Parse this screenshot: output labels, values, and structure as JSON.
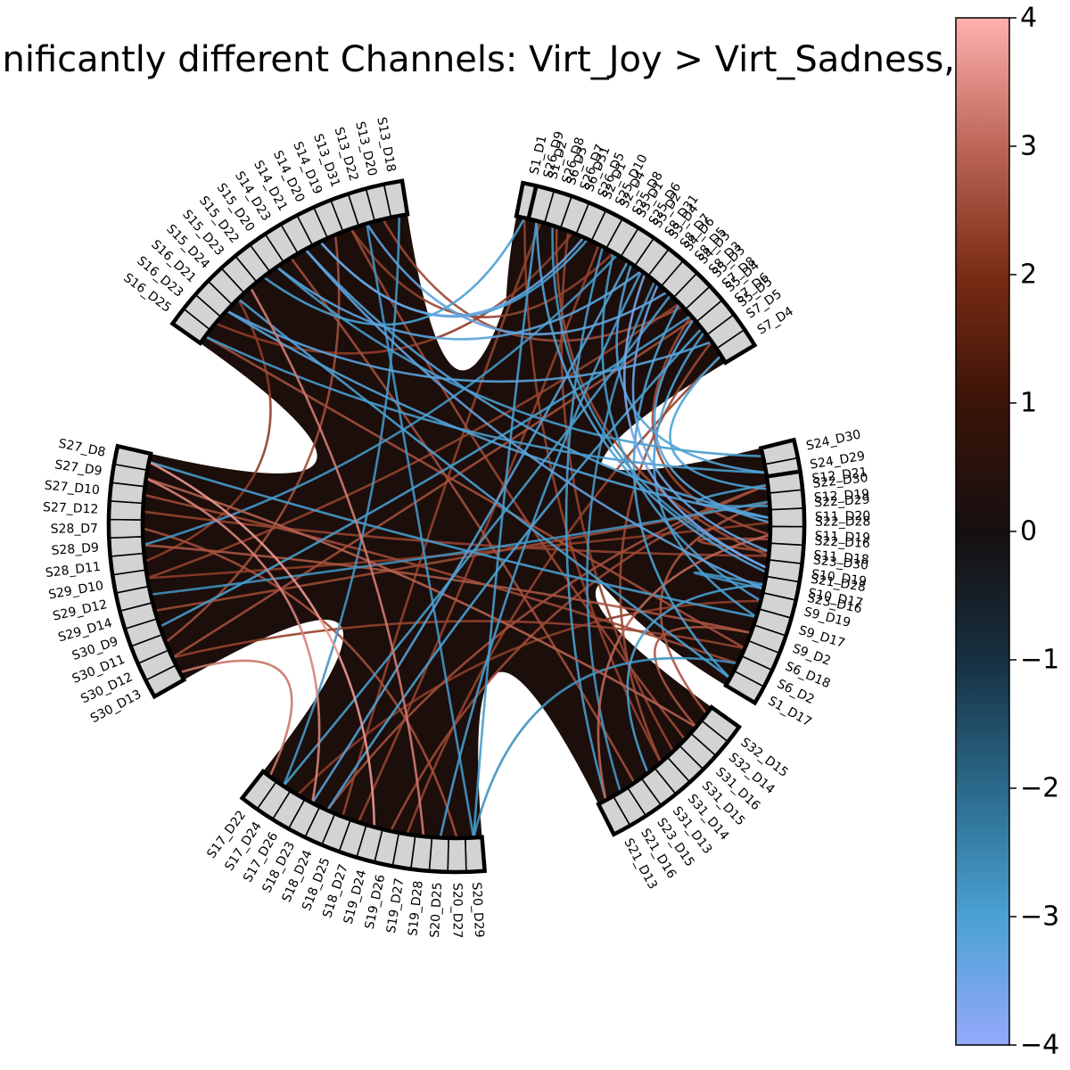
{
  "chart_data": {
    "type": "chord",
    "title": "Significantly different Channels: Virt_Joy > Virt_Sadness, t",
    "groups": [
      {
        "name": "group-1",
        "labels": [
          "S1_D1",
          "S1_D2",
          "S6_D3",
          "S6_D31",
          "S2_D1",
          "S2_D4",
          "S3_D1",
          "S3_D2",
          "S3_D4",
          "S4_D6",
          "S4_D3",
          "S5_D3",
          "S5_D4",
          "S5_D5"
        ]
      },
      {
        "name": "group-2",
        "labels": [
          "S24_D30",
          "S24_D29",
          "S22_D30",
          "S22_D29",
          "S22_D28",
          "S22_D16",
          "S23_D30",
          "S21_D28",
          "S23_D16"
        ]
      },
      {
        "name": "group-3",
        "labels": [
          "S32_D15",
          "S32_D14",
          "S31_D16",
          "S31_D15",
          "S31_D14",
          "S31_D13",
          "S23_D15",
          "S21_D16",
          "S21_D13"
        ]
      },
      {
        "name": "group-4",
        "labels": [
          "S20_D29",
          "S20_D27",
          "S20_D25",
          "S19_D28",
          "S19_D27",
          "S19_D26",
          "S19_D24",
          "S18_D27",
          "S18_D25",
          "S18_D24",
          "S18_D23",
          "S17_D26",
          "S17_D24",
          "S17_D22"
        ]
      },
      {
        "name": "group-5",
        "labels": [
          "S30_D13",
          "S30_D12",
          "S30_D11",
          "S30_D9",
          "S29_D14",
          "S29_D12",
          "S29_D10",
          "S28_D11",
          "S28_D9",
          "S28_D7",
          "S27_D12",
          "S27_D10",
          "S27_D9",
          "S27_D8"
        ]
      },
      {
        "name": "group-6",
        "labels": [
          "S16_D25",
          "S16_D23",
          "S16_D21",
          "S15_D24",
          "S15_D23",
          "S15_D22",
          "S15_D20",
          "S14_D23",
          "S14_D21",
          "S14_D20",
          "S14_D19",
          "S13_D31",
          "S13_D22",
          "S13_D20",
          "S13_D18"
        ]
      },
      {
        "name": "group-7",
        "labels": [
          "S26_D9",
          "S26_D8",
          "S26_D7",
          "S26_D5",
          "S25_D10",
          "S25_D8",
          "S25_D6",
          "S8_D31",
          "S8_D7",
          "S8_D5",
          "S8_D3",
          "S7_D8",
          "S7_D6",
          "S7_D5",
          "S7_D4"
        ]
      },
      {
        "name": "group-8",
        "labels": [
          "S12_D21",
          "S12_D19",
          "S11_D20",
          "S11_D19",
          "S11_D18",
          "S10_D19",
          "S10_D17",
          "S9_D19",
          "S9_D17",
          "S9_D2",
          "S6_D18",
          "S6_D2",
          "S1_D17"
        ]
      }
    ],
    "connections": [
      {
        "source": "S4_D6",
        "target": "S11_D18",
        "value": -3.4
      },
      {
        "source": "S3_D4",
        "target": "S10_D19",
        "value": -3.6
      },
      {
        "source": "S5_D4",
        "target": "S22_D28",
        "value": -3.2
      },
      {
        "source": "S3_D2",
        "target": "S24_D29",
        "value": -3.1
      },
      {
        "source": "S5_D5",
        "target": "S9_D17",
        "value": -3.0
      },
      {
        "source": "S2_D4",
        "target": "S21_D13",
        "value": -2.9
      },
      {
        "source": "S1_D1",
        "target": "S15_D22",
        "value": -3.0
      },
      {
        "source": "S1_D2",
        "target": "S18_D25",
        "value": 2.4
      },
      {
        "source": "S6_D3",
        "target": "S23_D30",
        "value": 2.5
      },
      {
        "source": "S6_D31",
        "target": "S16_D23",
        "value": 2.3
      },
      {
        "source": "S5_D4",
        "target": "S30_D12",
        "value": 2.6
      },
      {
        "source": "S5_D3",
        "target": "S13_D20",
        "value": 2.5
      },
      {
        "source": "S23_D16",
        "target": "S14_D21",
        "value": -3.3
      },
      {
        "source": "S24_D30",
        "target": "S15_D20",
        "value": -2.9
      },
      {
        "source": "S22_D30",
        "target": "S7_D4",
        "value": -3.0
      },
      {
        "source": "S22_D29",
        "target": "S12_D21",
        "value": -2.9
      },
      {
        "source": "S21_D28",
        "target": "S26_D9",
        "value": -3.1
      },
      {
        "source": "S22_D16",
        "target": "S11_D18",
        "value": 2.6
      },
      {
        "source": "S23_D30",
        "target": "S27_D12",
        "value": 2.4
      },
      {
        "source": "S32_D15",
        "target": "S12_D19",
        "value": 2.7
      },
      {
        "source": "S32_D14",
        "target": "S27_D9",
        "value": 2.9
      },
      {
        "source": "S31_D16",
        "target": "S13_D31",
        "value": 2.5
      },
      {
        "source": "S31_D13",
        "target": "S10_D17",
        "value": -3.0
      },
      {
        "source": "S21_D16",
        "target": "S8_D7",
        "value": -2.8
      },
      {
        "source": "S21_D13",
        "target": "S11_D19",
        "value": 3.0
      },
      {
        "source": "S23_D15",
        "target": "S14_D23",
        "value": 2.6
      },
      {
        "source": "S31_D15",
        "target": "S26_D7",
        "value": 2.4
      },
      {
        "source": "S19_D24",
        "target": "S27_D8",
        "value": 3.7
      },
      {
        "source": "S19_D28",
        "target": "S15_D23",
        "value": 3.3
      },
      {
        "source": "S20_D25",
        "target": "S8_D31",
        "value": -2.9
      },
      {
        "source": "S18_D24",
        "target": "S7_D6",
        "value": -3.0
      },
      {
        "source": "S18_D23",
        "target": "S25_D6",
        "value": -3.1
      },
      {
        "source": "S19_D26",
        "target": "S12_D21",
        "value": 2.5
      },
      {
        "source": "S17_D26",
        "target": "S9_D19",
        "value": 2.3
      },
      {
        "source": "S18_D27",
        "target": "S25_D10",
        "value": 2.4
      },
      {
        "source": "S20_D27",
        "target": "S28_D7",
        "value": 2.6
      },
      {
        "source": "S17_D24",
        "target": "S13_D18",
        "value": -2.8
      },
      {
        "source": "S17_D22",
        "target": "S30_D13",
        "value": 3.2
      },
      {
        "source": "S30_D11",
        "target": "S14_D19",
        "value": 2.6
      },
      {
        "source": "S29_D10",
        "target": "S8_D3",
        "value": 2.4
      },
      {
        "source": "S28_D9",
        "target": "S9_D2",
        "value": 2.7
      },
      {
        "source": "S27_D10",
        "target": "S6_D2",
        "value": 2.5
      },
      {
        "source": "S29_D12",
        "target": "S12_D19",
        "value": -2.7
      },
      {
        "source": "S30_D9",
        "target": "S7_D8",
        "value": -2.9
      },
      {
        "source": "S28_D11",
        "target": "S15_D24",
        "value": 2.3
      },
      {
        "source": "S16_D21",
        "target": "S7_D5",
        "value": -3.2
      },
      {
        "source": "S14_D20",
        "target": "S26_D5",
        "value": -3.4
      },
      {
        "source": "S13_D22",
        "target": "S8_D5",
        "value": -3.3
      },
      {
        "source": "S15_D24",
        "target": "S1_D17",
        "value": -3.0
      },
      {
        "source": "S16_D25",
        "target": "S6_D18",
        "value": 2.6
      },
      {
        "source": "S14_D21",
        "target": "S11_D20",
        "value": -3.1
      },
      {
        "source": "S13_D31",
        "target": "S25_D8",
        "value": 2.4
      },
      {
        "source": "S26_D8",
        "target": "S10_D19",
        "value": -2.8
      },
      {
        "source": "S25_D8",
        "target": "S9_D19",
        "value": -2.9
      },
      {
        "source": "S7_D8",
        "target": "S11_D19",
        "value": 2.5
      },
      {
        "source": "S8_D3",
        "target": "S1_D17",
        "value": -3.0
      },
      {
        "source": "S7_D4",
        "target": "S19_D27",
        "value": 2.4
      },
      {
        "source": "S26_D9",
        "target": "S20_D29",
        "value": -2.9
      },
      {
        "source": "S12_D21",
        "target": "S18_D24",
        "value": 2.6
      },
      {
        "source": "S10_D17",
        "target": "S23_D16",
        "value": -2.8
      },
      {
        "source": "S9_D2",
        "target": "S32_D14",
        "value": 2.7
      },
      {
        "source": "S6_D2",
        "target": "S20_D29",
        "value": -2.7
      },
      {
        "source": "S11_D20",
        "target": "S16_D21",
        "value": -3.1
      },
      {
        "source": "S12_D19",
        "target": "S29_D14",
        "value": 2.5
      },
      {
        "source": "S9_D17",
        "target": "S27_D8",
        "value": -2.9
      },
      {
        "source": "S2_D1",
        "target": "S14_D20",
        "value": -3.0
      },
      {
        "source": "S3_D1",
        "target": "S28_D9",
        "value": -2.8
      },
      {
        "source": "S4_D3",
        "target": "S17_D24",
        "value": -2.9
      },
      {
        "source": "S1_D1",
        "target": "S31_D14",
        "value": 2.4
      },
      {
        "source": "S24_D29",
        "target": "S16_D25",
        "value": -2.9
      },
      {
        "source": "S22_D28",
        "target": "S29_D10",
        "value": 2.3
      },
      {
        "source": "S31_D14",
        "target": "S7_D5",
        "value": 2.5
      },
      {
        "source": "S20_D29",
        "target": "S13_D22",
        "value": -2.8
      },
      {
        "source": "S27_D9",
        "target": "S18_D23",
        "value": 3.4
      },
      {
        "source": "S15_D20",
        "target": "S8_D31",
        "value": -3.2
      },
      {
        "source": "S6_D18",
        "target": "S30_D12",
        "value": 2.4
      }
    ],
    "colorbar": {
      "min": -4,
      "max": 4,
      "ticks": [
        4,
        3,
        2,
        1,
        0,
        -1,
        -2,
        -3,
        -4
      ],
      "tick_labels": [
        "4",
        "3",
        "2",
        "1",
        "0",
        "−1",
        "−2",
        "−3",
        "−4"
      ]
    },
    "colorscale": [
      {
        "value": -4,
        "color": "#95a9fb"
      },
      {
        "value": -3,
        "color": "#4aa1d3"
      },
      {
        "value": -2,
        "color": "#2a6a8b"
      },
      {
        "value": -1,
        "color": "#173041"
      },
      {
        "value": 0,
        "color": "#160f0f"
      },
      {
        "value": 1,
        "color": "#3a1408"
      },
      {
        "value": 2,
        "color": "#7a2c14"
      },
      {
        "value": 3,
        "color": "#bc6657"
      },
      {
        "value": 4,
        "color": "#ffb0ae"
      }
    ],
    "colors": {
      "background": "#1c0e0b",
      "node_fill": "#d3d3d3",
      "node_stroke": "#000000"
    }
  }
}
